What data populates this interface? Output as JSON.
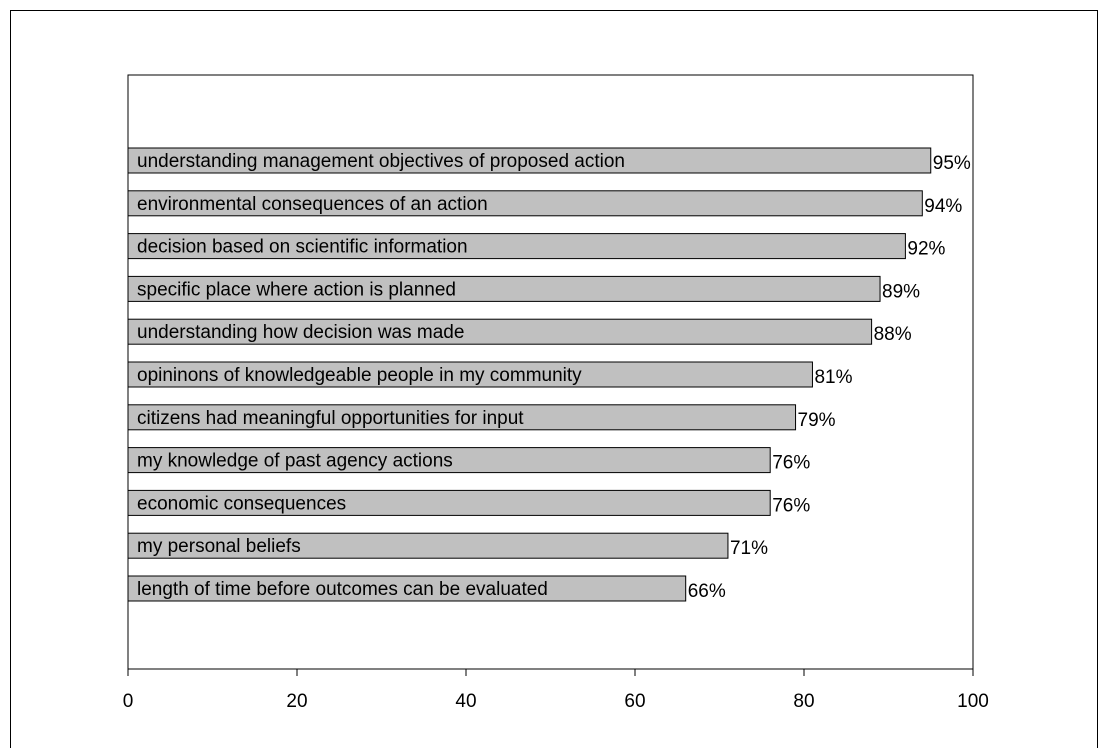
{
  "chart_data": {
    "type": "bar",
    "orientation": "horizontal",
    "title": "",
    "xlabel": "",
    "ylabel": "",
    "xlim": [
      0,
      100
    ],
    "xticks": [
      "0",
      "20",
      "40",
      "60",
      "80",
      "100"
    ],
    "grid": false,
    "bar_color": "#c0c0c0",
    "categories": [
      "understanding management objectives of proposed action",
      "environmental consequences of an action",
      "decision based on scientific information",
      "specific place where action is planned",
      "understanding how decision was made",
      "opininons of knowledgeable people in my community",
      "citizens had meaningful opportunities for input",
      "my knowledge of past agency actions",
      "economic consequences",
      "my personal beliefs",
      "length of time before outcomes can be evaluated"
    ],
    "values": [
      95,
      94,
      92,
      89,
      88,
      81,
      79,
      76,
      76,
      71,
      66
    ],
    "value_labels": [
      "95%",
      "94%",
      "92%",
      "89%",
      "88%",
      "81%",
      "79%",
      "76%",
      "76%",
      "71%",
      "66%"
    ]
  }
}
